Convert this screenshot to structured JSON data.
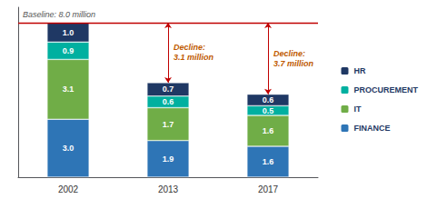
{
  "chart_data": {
    "type": "bar",
    "stacked": true,
    "categories": [
      "2002",
      "2013",
      "2017"
    ],
    "series": [
      {
        "name": "FINANCE",
        "color": "#2e75b6",
        "values": [
          3.0,
          1.9,
          1.6
        ],
        "value_labels": [
          "3.0",
          "1.9",
          "1.6"
        ]
      },
      {
        "name": "IT",
        "color": "#70ad47",
        "values": [
          3.1,
          1.7,
          1.6
        ],
        "value_labels": [
          "3.1",
          "1.7",
          "1.6"
        ]
      },
      {
        "name": "PROCUREMENT",
        "color": "#00b0a0",
        "values": [
          0.9,
          0.6,
          0.5
        ],
        "value_labels": [
          "0.9",
          "0.6",
          "0.5"
        ]
      },
      {
        "name": "HR",
        "color": "#1f3864",
        "values": [
          1.0,
          0.7,
          0.6
        ],
        "value_labels": [
          "1.0",
          "0.7",
          "0.6"
        ]
      }
    ],
    "ylim": [
      0,
      8.8
    ],
    "tick_labels": "x",
    "grid": false,
    "data_labels": true,
    "legend": "right",
    "baseline": {
      "value": 8.0,
      "label": "Baseline: 8.0 million",
      "color": "#c00000"
    },
    "annotations": [
      {
        "category": "2013",
        "text": "Decline:\n3.1 million",
        "from": 8.0,
        "to": 4.9,
        "color": "#c05a00",
        "arrow_color": "#c00000"
      },
      {
        "category": "2017",
        "text": "Decline:\n3.7 million",
        "from": 8.0,
        "to": 4.3,
        "color": "#c05a00",
        "arrow_color": "#c00000"
      }
    ]
  }
}
